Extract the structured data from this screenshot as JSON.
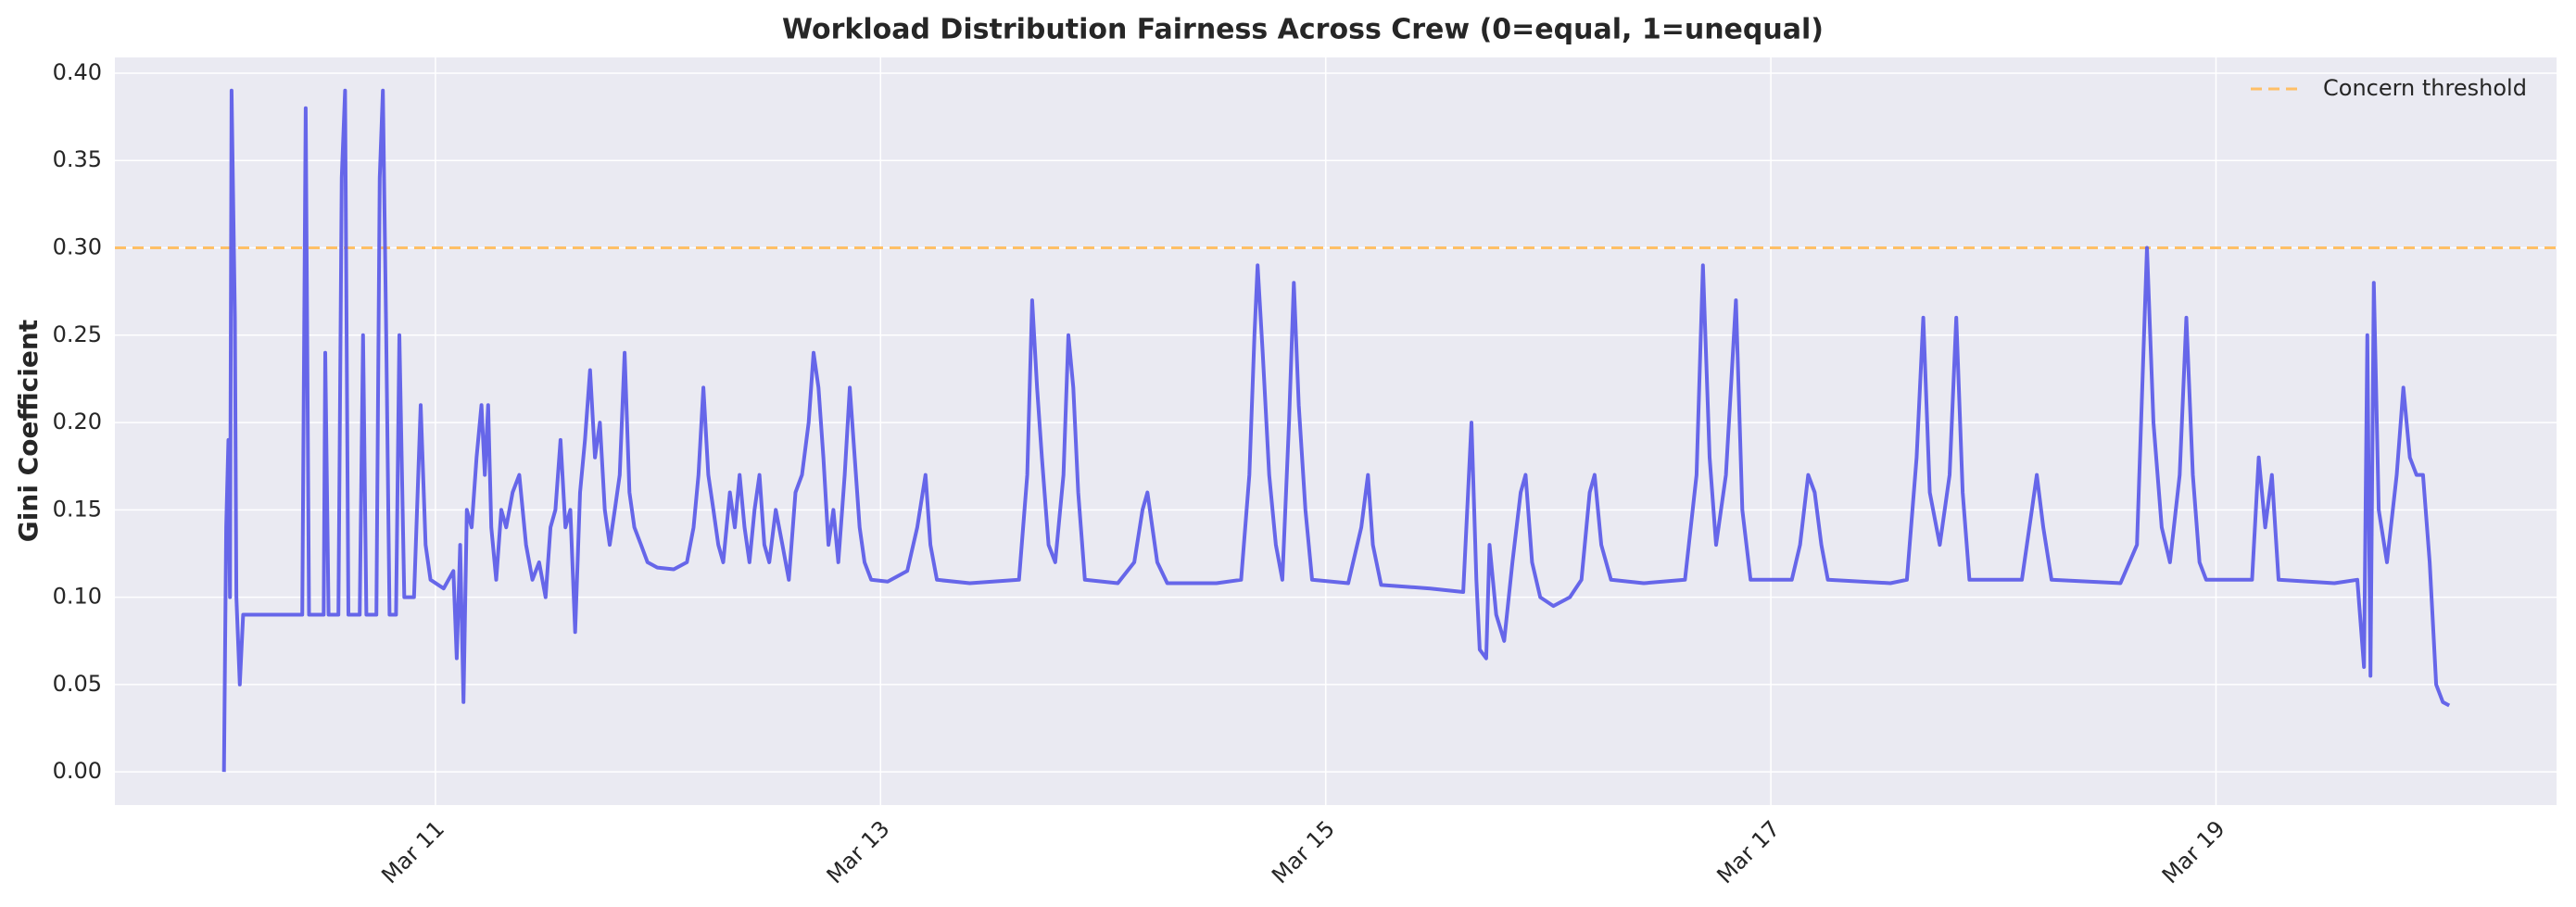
{
  "chart_data": {
    "type": "line",
    "title": "Workload Distribution Fairness Across Crew (0=equal, 1=unequal)",
    "y_label": "Gini Coefficient",
    "color": "#5f5fe8",
    "grid": true,
    "legend_position": "upper right",
    "threshold": {
      "name": "Concern threshold",
      "value": 0.3,
      "color": "#ffbf66"
    },
    "xlim": [
      9.56,
      20.53
    ],
    "xticks": [
      {
        "value": 11,
        "label": "Mar 11"
      },
      {
        "value": 13,
        "label": "Mar 13"
      },
      {
        "value": 15,
        "label": "Mar 15"
      },
      {
        "value": 17,
        "label": "Mar 17"
      },
      {
        "value": 19,
        "label": "Mar 19"
      }
    ],
    "ylim": [
      -0.019,
      0.409
    ],
    "yticks": [
      {
        "value": 0,
        "label": "0.00"
      },
      {
        "value": 0.05,
        "label": "0.05"
      },
      {
        "value": 0.1,
        "label": "0.10"
      },
      {
        "value": 0.15,
        "label": "0.15"
      },
      {
        "value": 0.2,
        "label": "0.20"
      },
      {
        "value": 0.25,
        "label": "0.25"
      },
      {
        "value": 0.3,
        "label": "0.30"
      },
      {
        "value": 0.35,
        "label": "0.35"
      },
      {
        "value": 0.4,
        "label": "0.40"
      }
    ],
    "x": [
      10.05,
      10.06,
      10.07,
      10.077,
      10.084,
      10.099,
      10.106,
      10.121,
      10.136,
      10.402,
      10.417,
      10.432,
      10.498,
      10.505,
      10.52,
      10.564,
      10.579,
      10.594,
      10.609,
      10.66,
      10.675,
      10.69,
      10.735,
      10.75,
      10.764,
      10.779,
      10.794,
      10.823,
      10.838,
      10.86,
      10.904,
      10.934,
      10.956,
      10.978,
      11.037,
      11.081,
      11.096,
      11.111,
      11.126,
      11.141,
      11.163,
      11.185,
      11.207,
      11.222,
      11.237,
      11.251,
      11.273,
      11.296,
      11.318,
      11.347,
      11.377,
      11.407,
      11.436,
      11.466,
      11.495,
      11.517,
      11.539,
      11.562,
      11.584,
      11.606,
      11.628,
      11.65,
      11.672,
      11.695,
      11.717,
      11.739,
      11.761,
      11.783,
      11.806,
      11.828,
      11.85,
      11.872,
      11.894,
      11.924,
      11.953,
      11.997,
      12.071,
      12.13,
      12.16,
      12.182,
      12.204,
      12.226,
      12.249,
      12.271,
      12.293,
      12.323,
      12.345,
      12.367,
      12.389,
      12.411,
      12.434,
      12.456,
      12.478,
      12.5,
      12.529,
      12.559,
      12.588,
      12.618,
      12.647,
      12.677,
      12.699,
      12.721,
      12.743,
      12.766,
      12.788,
      12.81,
      12.839,
      12.862,
      12.884,
      12.906,
      12.928,
      12.958,
      13.032,
      13.12,
      13.165,
      13.202,
      13.224,
      13.253,
      13.401,
      13.622,
      13.659,
      13.681,
      13.703,
      13.725,
      13.755,
      13.785,
      13.822,
      13.844,
      13.866,
      13.888,
      13.918,
      14.066,
      14.14,
      14.177,
      14.199,
      14.221,
      14.243,
      14.288,
      14.509,
      14.62,
      14.657,
      14.68,
      14.694,
      14.717,
      14.746,
      14.776,
      14.805,
      14.835,
      14.857,
      14.879,
      14.909,
      14.939,
      15.101,
      15.16,
      15.19,
      15.212,
      15.249,
      15.47,
      15.618,
      15.655,
      15.677,
      15.692,
      15.721,
      15.736,
      15.766,
      15.802,
      15.839,
      15.876,
      15.898,
      15.927,
      15.964,
      16.023,
      16.097,
      16.149,
      16.186,
      16.208,
      16.238,
      16.282,
      16.429,
      16.614,
      16.666,
      16.695,
      16.725,
      16.754,
      16.798,
      16.843,
      16.872,
      16.909,
      17.094,
      17.131,
      17.168,
      17.197,
      17.227,
      17.256,
      17.537,
      17.611,
      17.655,
      17.685,
      17.714,
      17.759,
      17.803,
      17.833,
      17.862,
      17.892,
      18.128,
      18.173,
      18.195,
      18.224,
      18.261,
      18.571,
      18.645,
      18.69,
      18.719,
      18.756,
      18.793,
      18.837,
      18.867,
      18.896,
      18.926,
      18.956,
      19.162,
      19.192,
      19.221,
      19.251,
      19.281,
      19.532,
      19.635,
      19.665,
      19.68,
      19.694,
      19.709,
      19.731,
      19.768,
      19.812,
      19.842,
      19.871,
      19.901,
      19.93,
      19.96,
      19.989,
      20.019,
      20.048
    ],
    "values": [
      0,
      0.14,
      0.19,
      0.1,
      0.39,
      0.26,
      0.1,
      0.05,
      0.09,
      0.09,
      0.38,
      0.09,
      0.09,
      0.24,
      0.09,
      0.09,
      0.34,
      0.39,
      0.09,
      0.09,
      0.25,
      0.09,
      0.09,
      0.34,
      0.39,
      0.25,
      0.09,
      0.09,
      0.25,
      0.1,
      0.1,
      0.21,
      0.13,
      0.11,
      0.105,
      0.115,
      0.065,
      0.13,
      0.04,
      0.15,
      0.14,
      0.18,
      0.21,
      0.17,
      0.21,
      0.14,
      0.11,
      0.15,
      0.14,
      0.16,
      0.17,
      0.13,
      0.11,
      0.12,
      0.1,
      0.14,
      0.15,
      0.19,
      0.14,
      0.15,
      0.08,
      0.16,
      0.19,
      0.23,
      0.18,
      0.2,
      0.15,
      0.13,
      0.15,
      0.17,
      0.24,
      0.16,
      0.14,
      0.13,
      0.12,
      0.117,
      0.116,
      0.12,
      0.14,
      0.17,
      0.22,
      0.17,
      0.15,
      0.13,
      0.12,
      0.16,
      0.14,
      0.17,
      0.14,
      0.12,
      0.15,
      0.17,
      0.13,
      0.12,
      0.15,
      0.13,
      0.11,
      0.16,
      0.17,
      0.2,
      0.24,
      0.22,
      0.18,
      0.13,
      0.15,
      0.12,
      0.17,
      0.22,
      0.18,
      0.14,
      0.12,
      0.11,
      0.109,
      0.115,
      0.14,
      0.17,
      0.13,
      0.11,
      0.108,
      0.11,
      0.17,
      0.27,
      0.22,
      0.18,
      0.13,
      0.12,
      0.17,
      0.25,
      0.22,
      0.16,
      0.11,
      0.108,
      0.12,
      0.15,
      0.16,
      0.14,
      0.12,
      0.108,
      0.108,
      0.11,
      0.17,
      0.25,
      0.29,
      0.24,
      0.17,
      0.13,
      0.11,
      0.2,
      0.28,
      0.21,
      0.15,
      0.11,
      0.108,
      0.14,
      0.17,
      0.13,
      0.107,
      0.105,
      0.103,
      0.2,
      0.11,
      0.07,
      0.065,
      0.13,
      0.09,
      0.075,
      0.12,
      0.16,
      0.17,
      0.12,
      0.1,
      0.095,
      0.1,
      0.11,
      0.16,
      0.17,
      0.13,
      0.11,
      0.108,
      0.11,
      0.17,
      0.29,
      0.18,
      0.13,
      0.17,
      0.27,
      0.15,
      0.11,
      0.11,
      0.13,
      0.17,
      0.16,
      0.13,
      0.11,
      0.108,
      0.11,
      0.18,
      0.26,
      0.16,
      0.13,
      0.17,
      0.26,
      0.16,
      0.11,
      0.11,
      0.15,
      0.17,
      0.14,
      0.11,
      0.108,
      0.13,
      0.3,
      0.2,
      0.14,
      0.12,
      0.17,
      0.26,
      0.17,
      0.12,
      0.11,
      0.11,
      0.18,
      0.14,
      0.17,
      0.11,
      0.108,
      0.11,
      0.06,
      0.25,
      0.055,
      0.28,
      0.15,
      0.12,
      0.17,
      0.22,
      0.18,
      0.17,
      0.17,
      0.12,
      0.05,
      0.04,
      0.038
    ]
  }
}
